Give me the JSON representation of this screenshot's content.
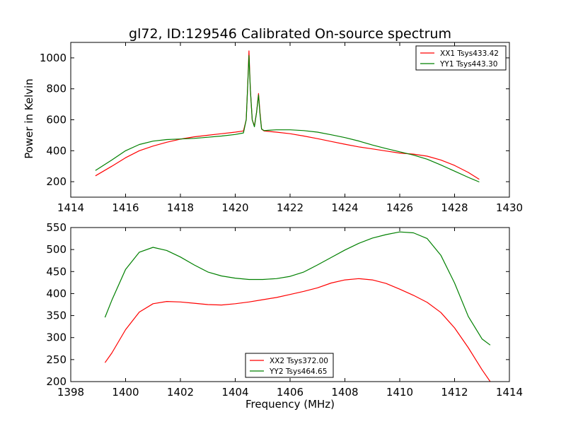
{
  "figure": {
    "title": "gl72, ID:129546 Calibrated On-source spectrum"
  },
  "chart_data": [
    {
      "type": "line",
      "title": "gl72, ID:129546 Calibrated On-source spectrum",
      "xlabel": "",
      "ylabel": "Power in Kelvin",
      "xlim": [
        1414,
        1430
      ],
      "ylim": [
        100,
        1100
      ],
      "xticks": [
        "1414",
        "1416",
        "1418",
        "1420",
        "1422",
        "1424",
        "1426",
        "1428",
        "1430"
      ],
      "yticks": [
        "200",
        "400",
        "600",
        "800",
        "1000"
      ],
      "legend_position": "top-right",
      "grid": false,
      "series": [
        {
          "name": "XX1 Tsys433.42",
          "color": "#ff0000",
          "x": [
            1414.9,
            1415.5,
            1416.0,
            1416.5,
            1417.0,
            1417.5,
            1418.0,
            1418.5,
            1419.0,
            1419.5,
            1420.0,
            1420.3,
            1420.4,
            1420.45,
            1420.5,
            1420.55,
            1420.62,
            1420.7,
            1420.78,
            1420.85,
            1420.9,
            1420.96,
            1421.05,
            1421.2,
            1421.5,
            1422.0,
            1422.5,
            1423.0,
            1423.5,
            1424.0,
            1424.5,
            1425.0,
            1425.5,
            1426.0,
            1426.5,
            1427.0,
            1427.5,
            1428.0,
            1428.5,
            1428.9
          ],
          "y": [
            238,
            300,
            355,
            400,
            430,
            455,
            475,
            490,
            500,
            510,
            520,
            528,
            600,
            800,
            1045,
            800,
            600,
            560,
            650,
            770,
            650,
            540,
            528,
            525,
            520,
            510,
            495,
            478,
            460,
            442,
            425,
            412,
            398,
            385,
            378,
            365,
            340,
            305,
            260,
            215
          ]
        },
        {
          "name": "YY1 Tsys443.30",
          "color": "#008000",
          "x": [
            1414.9,
            1415.5,
            1416.0,
            1416.5,
            1417.0,
            1417.5,
            1418.0,
            1418.5,
            1419.0,
            1419.5,
            1420.0,
            1420.3,
            1420.4,
            1420.45,
            1420.5,
            1420.55,
            1420.62,
            1420.7,
            1420.78,
            1420.85,
            1420.9,
            1420.96,
            1421.05,
            1421.2,
            1421.5,
            1422.0,
            1422.5,
            1423.0,
            1423.5,
            1424.0,
            1424.5,
            1425.0,
            1425.5,
            1426.0,
            1426.5,
            1427.0,
            1427.5,
            1428.0,
            1428.5,
            1428.9
          ],
          "y": [
            272,
            340,
            400,
            440,
            462,
            472,
            476,
            480,
            487,
            495,
            505,
            515,
            600,
            800,
            1015,
            800,
            600,
            555,
            650,
            760,
            640,
            540,
            530,
            532,
            535,
            535,
            530,
            520,
            503,
            485,
            463,
            437,
            414,
            393,
            372,
            345,
            308,
            268,
            228,
            198
          ]
        }
      ]
    },
    {
      "type": "line",
      "title": "",
      "xlabel": "Frequency (MHz)",
      "ylabel": "",
      "xlim": [
        1398,
        1414
      ],
      "ylim": [
        200,
        550
      ],
      "xticks": [
        "1398",
        "1400",
        "1402",
        "1404",
        "1406",
        "1408",
        "1410",
        "1412",
        "1414"
      ],
      "yticks": [
        "200",
        "250",
        "300",
        "350",
        "400",
        "450",
        "500",
        "550"
      ],
      "legend_position": "bottom-center",
      "grid": false,
      "series": [
        {
          "name": "XX2 Tsys372.00",
          "color": "#ff0000",
          "x": [
            1399.25,
            1399.5,
            1400.0,
            1400.5,
            1401.0,
            1401.5,
            1402.0,
            1402.5,
            1403.0,
            1403.5,
            1404.0,
            1404.5,
            1405.0,
            1405.5,
            1406.0,
            1406.5,
            1407.0,
            1407.5,
            1408.0,
            1408.5,
            1409.0,
            1409.5,
            1410.0,
            1410.5,
            1411.0,
            1411.5,
            1412.0,
            1412.5,
            1413.0,
            1413.3
          ],
          "y": [
            243,
            265,
            318,
            358,
            377,
            382,
            381,
            378,
            375,
            374,
            377,
            381,
            386,
            391,
            398,
            405,
            413,
            424,
            431,
            434,
            431,
            423,
            410,
            396,
            380,
            357,
            322,
            277,
            227,
            200
          ]
        },
        {
          "name": "YY2 Tsys464.65",
          "color": "#008000",
          "x": [
            1399.25,
            1399.5,
            1400.0,
            1400.5,
            1401.0,
            1401.5,
            1402.0,
            1402.5,
            1403.0,
            1403.5,
            1404.0,
            1404.5,
            1405.0,
            1405.5,
            1406.0,
            1406.5,
            1407.0,
            1407.5,
            1408.0,
            1408.5,
            1409.0,
            1409.5,
            1410.0,
            1410.5,
            1411.0,
            1411.5,
            1412.0,
            1412.5,
            1413.0,
            1413.3
          ],
          "y": [
            346,
            385,
            455,
            494,
            505,
            498,
            483,
            465,
            449,
            440,
            435,
            432,
            432,
            434,
            439,
            449,
            465,
            482,
            499,
            514,
            526,
            534,
            540,
            538,
            525,
            487,
            424,
            348,
            297,
            283
          ]
        }
      ]
    }
  ]
}
